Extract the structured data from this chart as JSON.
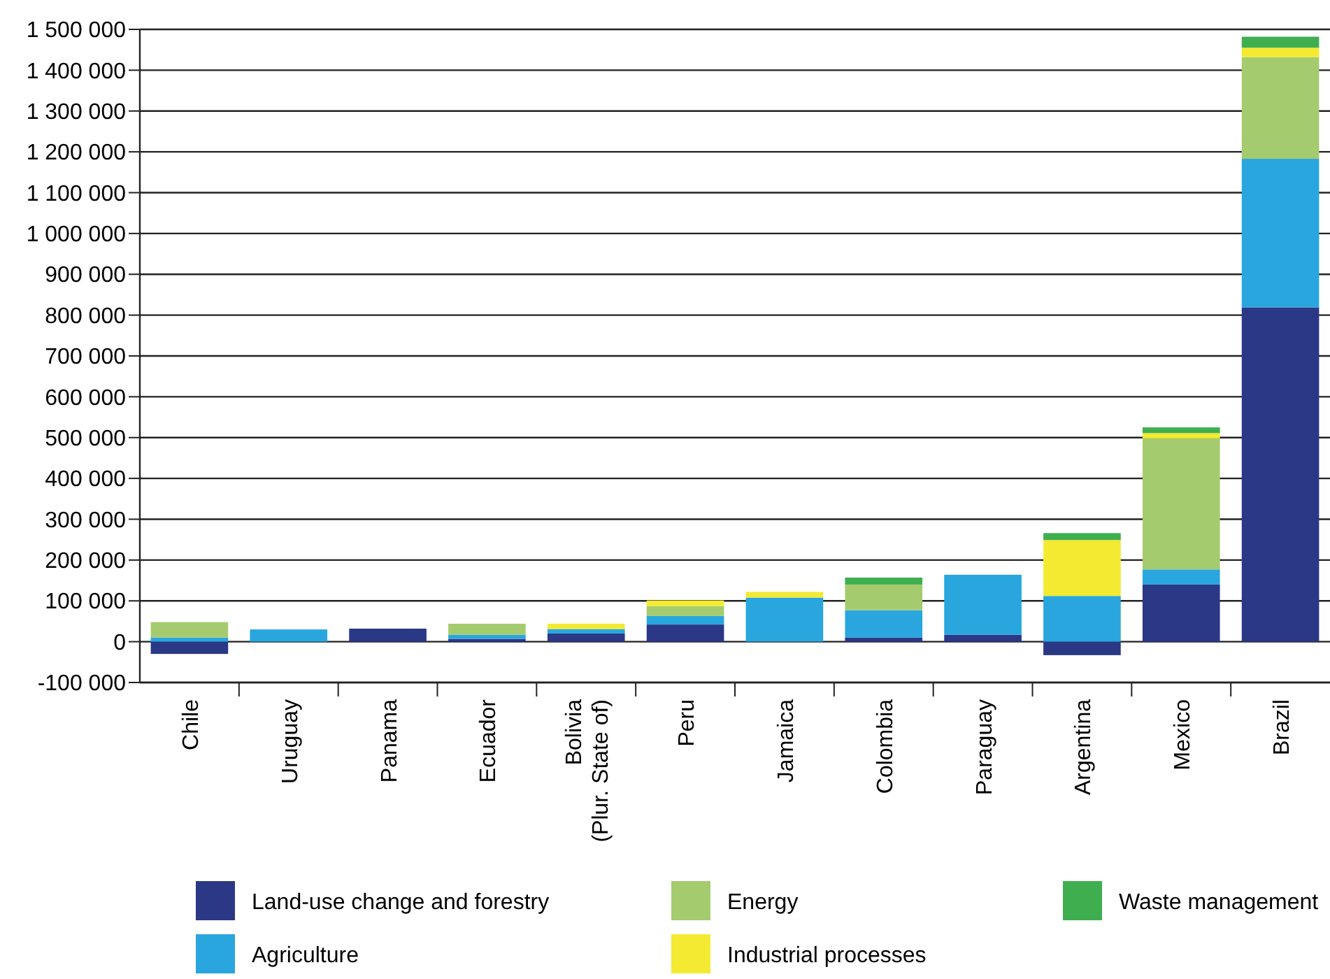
{
  "chart_data": {
    "type": "bar",
    "stacked": true,
    "categories": [
      "Chile",
      "Uruguay",
      "Panama",
      "Ecuador",
      "Bolivia (Plur. State of)",
      "Peru",
      "Jamaica",
      "Colombia",
      "Paraguay",
      "Argentina",
      "Mexico",
      "Brazil"
    ],
    "series": [
      {
        "name": "Land-use change and forestry",
        "color": "#2b3886",
        "values": [
          -30000,
          0,
          32000,
          7000,
          20000,
          42000,
          0,
          10000,
          17000,
          -33000,
          140000,
          819000
        ]
      },
      {
        "name": "Agriculture",
        "color": "#29a6de",
        "values": [
          10000,
          30000,
          0,
          10000,
          11000,
          21000,
          108000,
          67000,
          147000,
          112000,
          37000,
          364000
        ]
      },
      {
        "name": "Energy",
        "color": "#a5cb6f",
        "values": [
          38000,
          0,
          0,
          27000,
          0,
          24000,
          0,
          63000,
          0,
          0,
          321000,
          249000
        ]
      },
      {
        "name": "Industrial processes",
        "color": "#f4ea31",
        "values": [
          0,
          0,
          0,
          0,
          13000,
          14000,
          14000,
          0,
          0,
          137000,
          13000,
          23000
        ]
      },
      {
        "name": "Waste management",
        "color": "#3fae4f",
        "values": [
          0,
          0,
          0,
          0,
          0,
          0,
          0,
          17000,
          0,
          17000,
          14000,
          27000
        ]
      }
    ],
    "ylim": [
      -100000,
      1500000
    ],
    "yticks": [
      {
        "value": -100000,
        "label": "-100 000"
      },
      0,
      {
        "value": 100000,
        "label": "100 000"
      },
      {
        "value": 200000,
        "label": "200 000"
      },
      {
        "value": 300000,
        "label": "300 000"
      },
      {
        "value": 400000,
        "label": "400 000"
      },
      {
        "value": 500000,
        "label": "500 000"
      },
      {
        "value": 600000,
        "label": "600 000"
      },
      {
        "value": 700000,
        "label": "700 000"
      },
      {
        "value": 800000,
        "label": "800 000"
      },
      {
        "value": 900000,
        "label": "900 000"
      },
      {
        "value": 1000000,
        "label": "1 000 000"
      },
      {
        "value": 1100000,
        "label": "1 100 000"
      },
      {
        "value": 1200000,
        "label": "1 200 000"
      },
      {
        "value": 1300000,
        "label": "1 300 000"
      },
      {
        "value": 1400000,
        "label": "1 400 000"
      },
      {
        "value": 1500000,
        "label": "1 500 000"
      }
    ],
    "grid": "y",
    "legend": "bottom"
  }
}
